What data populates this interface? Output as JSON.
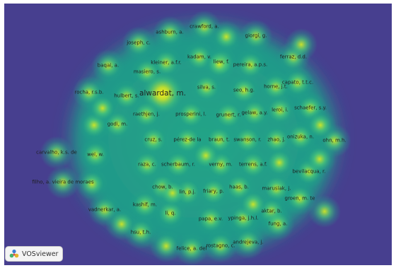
{
  "app": {
    "name": "VOSviewer"
  },
  "view": {
    "type": "density visualization",
    "colors": {
      "background": "#473f8f",
      "mid": "#1fa38a",
      "high": "#2fc07d",
      "peak": "#f7ea1c"
    }
  },
  "items": [
    {
      "label": "crawford, a.",
      "weight": 0.6
    },
    {
      "label": "ashburn, a.",
      "weight": 0.6
    },
    {
      "label": "giorgi, g.",
      "weight": 0.6
    },
    {
      "label": "joseph, c.",
      "weight": 0.6
    },
    {
      "label": "kadam, v.",
      "weight": 0.6
    },
    {
      "label": "ferraz, d.d.",
      "weight": 0.6
    },
    {
      "label": "kleiner, a.f.r.",
      "weight": 0.6
    },
    {
      "label": "liew, f.",
      "weight": 0.6
    },
    {
      "label": "pereira, a.p.s.",
      "weight": 0.6
    },
    {
      "label": "baqai, a.",
      "weight": 0.6
    },
    {
      "label": "masiero, s.",
      "weight": 0.6
    },
    {
      "label": "capato, t.t.c.",
      "weight": 0.6
    },
    {
      "label": "silva, s.",
      "weight": 0.6
    },
    {
      "label": "seo, h.g.",
      "weight": 0.6
    },
    {
      "label": "horne, j.t.",
      "weight": 0.6
    },
    {
      "label": "rocha, r.s.b.",
      "weight": 0.6
    },
    {
      "label": "alwardat, m.",
      "weight": 1.0
    },
    {
      "label": "hulbert, s.",
      "weight": 0.6
    },
    {
      "label": "leroi, i.",
      "weight": 0.6
    },
    {
      "label": "schaefer, s.y.",
      "weight": 0.6
    },
    {
      "label": "raethjen, j.",
      "weight": 0.6
    },
    {
      "label": "prosperini, l.",
      "weight": 0.6
    },
    {
      "label": "grunert, r.",
      "weight": 0.6
    },
    {
      "label": "gelaw, a.y.",
      "weight": 0.6
    },
    {
      "label": "godi, m.",
      "weight": 0.6
    },
    {
      "label": "cruz, s.",
      "weight": 0.6
    },
    {
      "label": "pérez-de la",
      "weight": 0.6
    },
    {
      "label": "braun, t.",
      "weight": 0.6
    },
    {
      "label": "swanson, r.",
      "weight": 0.6
    },
    {
      "label": "zhao, j.",
      "weight": 0.6
    },
    {
      "label": "onizuka, n.",
      "weight": 0.6
    },
    {
      "label": "ohn, m.h.",
      "weight": 0.6
    },
    {
      "label": "carvalho, k.s. de",
      "weight": 0.6
    },
    {
      "label": "wei, w.",
      "weight": 0.6
    },
    {
      "label": "raza, c.",
      "weight": 0.6
    },
    {
      "label": "scherbaum, r.",
      "weight": 0.6
    },
    {
      "label": "verny, m.",
      "weight": 0.6
    },
    {
      "label": "terrens, a.f.",
      "weight": 0.6
    },
    {
      "label": "bevilacqua, r.",
      "weight": 0.6
    },
    {
      "label": "filho, a. vieira de moraes",
      "weight": 0.6
    },
    {
      "label": "chow, b.",
      "weight": 0.6
    },
    {
      "label": "lin, p.j.",
      "weight": 0.6
    },
    {
      "label": "friary, p.",
      "weight": 0.6
    },
    {
      "label": "haas, b.",
      "weight": 0.6
    },
    {
      "label": "marusiak, j.",
      "weight": 0.6
    },
    {
      "label": "groen, m. te",
      "weight": 0.6
    },
    {
      "label": "kashif, m.",
      "weight": 0.6
    },
    {
      "label": "vadnerkar, a.",
      "weight": 0.6
    },
    {
      "label": "li, q.",
      "weight": 0.6
    },
    {
      "label": "papa, e.v.",
      "weight": 0.6
    },
    {
      "label": "ypinga, j.h.l.",
      "weight": 0.6
    },
    {
      "label": "aktar, b.",
      "weight": 0.6
    },
    {
      "label": "fung, a.",
      "weight": 0.6
    },
    {
      "label": "hsu, t.h.",
      "weight": 0.6
    },
    {
      "label": "andrejeva, j.",
      "weight": 0.6
    },
    {
      "label": "felice, a. del",
      "weight": 0.6
    },
    {
      "label": "rostagno, c.",
      "weight": 0.6
    }
  ]
}
